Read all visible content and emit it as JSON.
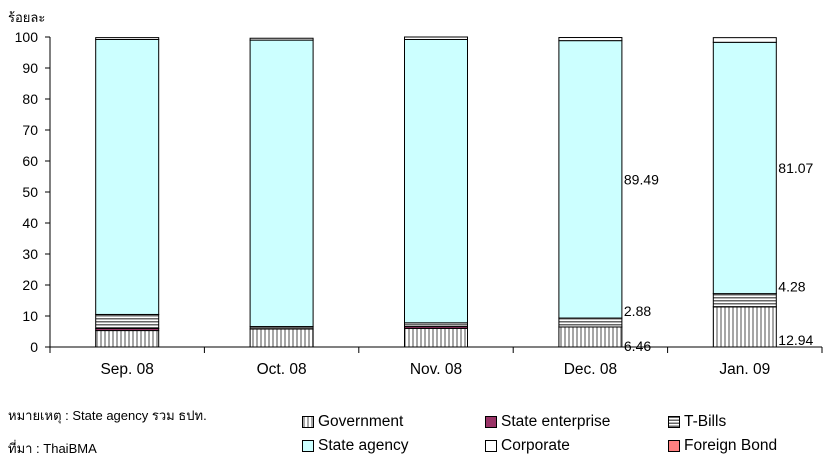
{
  "chart_data": {
    "type": "bar",
    "stacked": true,
    "ylabel": "ร้อยละ",
    "ylim": [
      0,
      100
    ],
    "yticks": [
      0,
      10,
      20,
      30,
      40,
      50,
      60,
      70,
      80,
      90,
      100
    ],
    "grid": false,
    "legend_position": "bottom",
    "categories": [
      "Sep. 08",
      "Oct. 08",
      "Nov. 08",
      "Dec. 08",
      "Jan. 09"
    ],
    "series": [
      {
        "name": "Government",
        "color": "#ffffff",
        "pattern": "vertical-stripes",
        "values": [
          5.3,
          5.8,
          6.0,
          6.46,
          12.94
        ]
      },
      {
        "name": "State enterprise",
        "color": "#993366",
        "values": [
          0.7,
          0.0,
          0.6,
          0.0,
          0.0
        ]
      },
      {
        "name": "T-Bills",
        "color": "#ffffff",
        "pattern": "horizontal-stripes",
        "values": [
          4.5,
          0.8,
          1.2,
          2.88,
          4.28
        ]
      },
      {
        "name": "State agency",
        "color": "#ccffff",
        "values": [
          88.7,
          92.4,
          91.4,
          89.49,
          81.07
        ]
      },
      {
        "name": "Corporate",
        "color": "#ffffff",
        "values": [
          0.6,
          0.6,
          0.8,
          1.0,
          1.5
        ]
      },
      {
        "name": "Foreign Bond",
        "color": "#ff8080",
        "values": [
          0.0,
          0.0,
          0.0,
          0.0,
          0.0
        ]
      }
    ],
    "data_labels": [
      {
        "category": "Dec. 08",
        "series": "State agency",
        "text": "89.49"
      },
      {
        "category": "Dec. 08",
        "series": "T-Bills",
        "text": "2.88"
      },
      {
        "category": "Dec. 08",
        "series": "Government",
        "text": "6.46"
      },
      {
        "category": "Jan. 09",
        "series": "State agency",
        "text": "81.07"
      },
      {
        "category": "Jan. 09",
        "series": "T-Bills",
        "text": "4.28"
      },
      {
        "category": "Jan. 09",
        "series": "Government",
        "text": "12.94"
      }
    ]
  },
  "notes": {
    "remark": "หมายเหตุ : State agency รวม ธปท.",
    "source": "ที่มา : ThaiBMA"
  }
}
